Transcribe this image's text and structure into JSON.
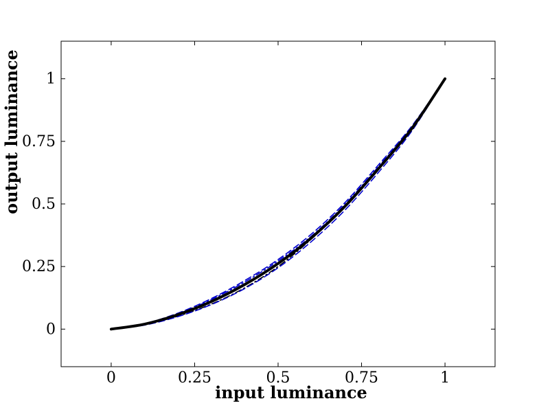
{
  "chart_data": {
    "type": "line",
    "title": "",
    "xlabel": "input luminance",
    "ylabel": "output luminance",
    "xlim": [
      -0.15,
      1.15
    ],
    "ylim": [
      -0.15,
      1.15
    ],
    "xticks": [
      0,
      0.25,
      0.5,
      0.75,
      1
    ],
    "xtick_labels": [
      "0",
      "0.25",
      "0.5",
      "0.75",
      "1"
    ],
    "yticks": [
      0,
      0.25,
      0.5,
      0.75,
      1
    ],
    "ytick_labels": [
      "0",
      "0.25",
      "0.5",
      "0.75",
      "1"
    ],
    "grid": false,
    "legend": "none",
    "x": [
      0,
      0.1,
      0.2,
      0.3,
      0.4,
      0.5,
      0.6,
      0.7,
      0.8,
      0.9,
      1.0
    ],
    "series": [
      {
        "color": "#000000",
        "style": "solid",
        "values": [
          0,
          0.02,
          0.058,
          0.11,
          0.178,
          0.262,
          0.365,
          0.49,
          0.64,
          0.8,
          1.0
        ]
      },
      {
        "color": "#000000",
        "style": "dashdot",
        "values": [
          0,
          0.018,
          0.052,
          0.1,
          0.165,
          0.25,
          0.36,
          0.49,
          0.635,
          0.8,
          1.0
        ]
      },
      {
        "color": "#0000cc",
        "style": "dashed",
        "values": [
          0,
          0.022,
          0.064,
          0.122,
          0.194,
          0.278,
          0.38,
          0.505,
          0.655,
          0.81,
          1.0
        ]
      },
      {
        "color": "#0000cc",
        "style": "dashed",
        "values": [
          0,
          0.016,
          0.05,
          0.098,
          0.162,
          0.245,
          0.35,
          0.475,
          0.625,
          0.79,
          1.0
        ]
      },
      {
        "color": "#0000cc",
        "style": "dashdot",
        "values": [
          0,
          0.021,
          0.061,
          0.118,
          0.188,
          0.272,
          0.372,
          0.498,
          0.648,
          0.806,
          1.0
        ]
      }
    ]
  }
}
